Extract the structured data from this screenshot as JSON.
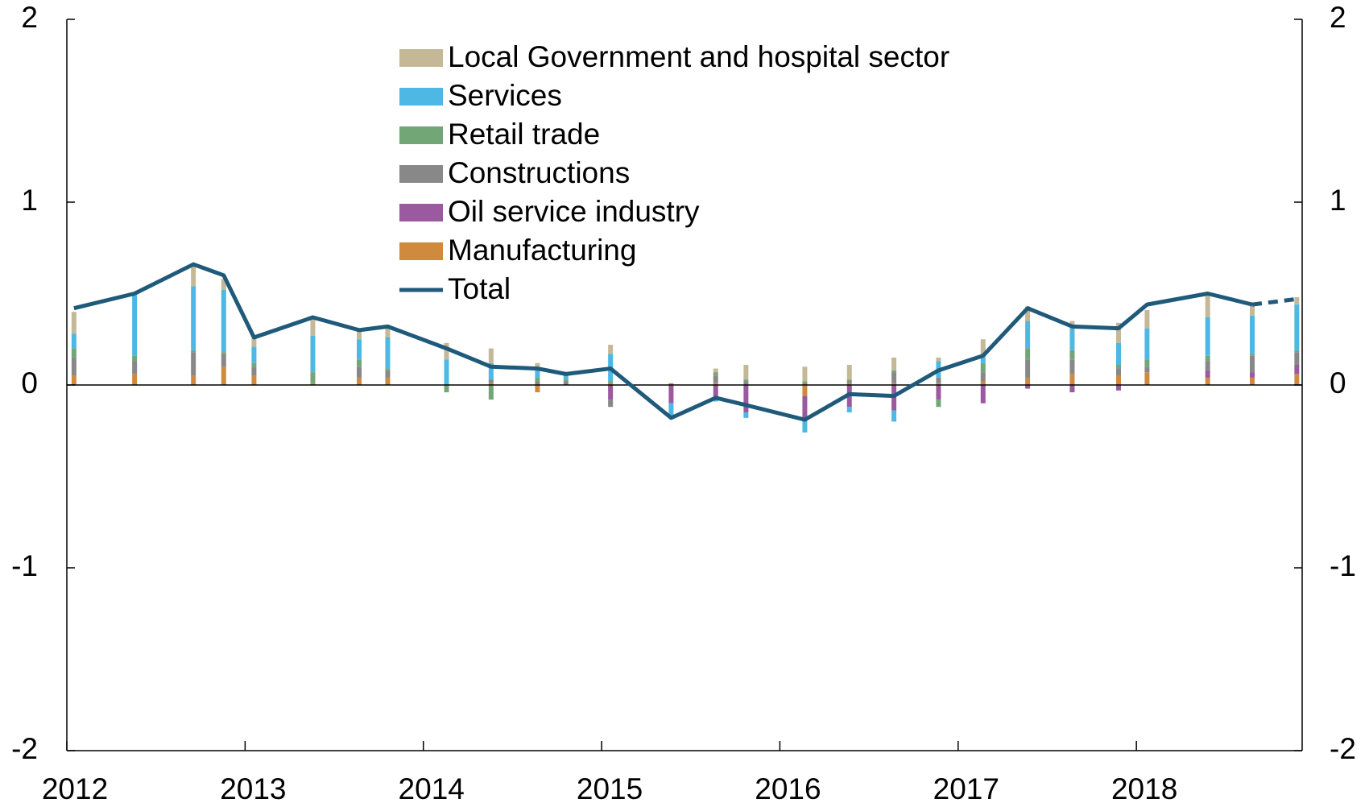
{
  "chart_data": {
    "type": "bar",
    "x": [
      2012.04,
      2012.38,
      2012.71,
      2012.88,
      2013.05,
      2013.38,
      2013.64,
      2013.8,
      2014.13,
      2014.38,
      2014.64,
      2014.8,
      2015.05,
      2015.39,
      2015.64,
      2015.81,
      2016.14,
      2016.39,
      2016.64,
      2016.89,
      2017.14,
      2017.39,
      2017.64,
      2017.9,
      2018.06,
      2018.4,
      2018.65,
      2018.9
    ],
    "series": [
      {
        "name": "Local Government and hospital sector",
        "type": "bar",
        "color": "#c4b897",
        "values": [
          0.12,
          0.01,
          0.12,
          0.06,
          0.05,
          0.09,
          0.05,
          0.06,
          0.09,
          0.08,
          0.04,
          0.01,
          0.05,
          0,
          0.02,
          0.08,
          0.08,
          0.08,
          0.07,
          0.02,
          0.1,
          0.08,
          0.04,
          0.11,
          0.1,
          0.12,
          0.06,
          0.04
        ]
      },
      {
        "name": "Services",
        "type": "bar",
        "color": "#4db8e4",
        "values": [
          0.08,
          0.33,
          0.35,
          0.34,
          0.09,
          0.2,
          0.11,
          0.17,
          0.14,
          0.09,
          0.04,
          0.03,
          0.15,
          -0.08,
          -0.02,
          -0.03,
          -0.08,
          -0.03,
          -0.06,
          0.09,
          0.03,
          0.15,
          0.12,
          0.12,
          0.17,
          0.21,
          0.21,
          0.25
        ]
      },
      {
        "name": "Retail trade",
        "type": "bar",
        "color": "#73a677",
        "values": [
          0.05,
          0.03,
          0.01,
          0.01,
          0.02,
          0.06,
          0.04,
          0.01,
          -0.04,
          -0.08,
          0.02,
          0.01,
          0.01,
          0,
          0.02,
          0.01,
          0.01,
          0.01,
          0.01,
          -0.04,
          0.05,
          0.06,
          0.05,
          0.02,
          0.04,
          0.03,
          0.01,
          0.01
        ]
      },
      {
        "name": "Constructions",
        "type": "bar",
        "color": "#888888",
        "values": [
          0.1,
          0.07,
          0.13,
          0.07,
          0.05,
          0,
          0.06,
          0.04,
          0,
          0.02,
          0.02,
          0.02,
          -0.04,
          0,
          0.04,
          0.02,
          0.01,
          0.01,
          0.06,
          0.03,
          0.05,
          0.1,
          0.08,
          0.04,
          0.03,
          0.05,
          0.09,
          0.07
        ]
      },
      {
        "name": "Oil service industry",
        "type": "bar",
        "color": "#9b59a0",
        "values": [
          0,
          0,
          0,
          0,
          0,
          0,
          0,
          0,
          0,
          0,
          0,
          0,
          -0.08,
          -0.1,
          -0.07,
          -0.15,
          -0.12,
          -0.12,
          -0.14,
          -0.08,
          -0.1,
          -0.02,
          -0.04,
          -0.03,
          0,
          0.04,
          0.03,
          0.05
        ]
      },
      {
        "name": "Manufacturing",
        "type": "bar",
        "color": "#d08a3e",
        "values": [
          0.05,
          0.06,
          0.05,
          0.1,
          0.05,
          0.01,
          0.04,
          0.04,
          0,
          0.01,
          -0.04,
          0,
          0.01,
          0.01,
          0.01,
          0,
          -0.06,
          0.01,
          0.01,
          0.01,
          0.02,
          0.04,
          0.06,
          0.05,
          0.07,
          0.04,
          0.04,
          0.06
        ]
      },
      {
        "name": "Total",
        "type": "line",
        "color": "#1f5a7a",
        "dashed_from": 26,
        "values": [
          0.42,
          0.5,
          0.66,
          0.6,
          0.26,
          0.37,
          0.3,
          0.32,
          0.2,
          0.1,
          0.09,
          0.06,
          0.09,
          -0.18,
          -0.07,
          -0.11,
          -0.19,
          -0.05,
          -0.06,
          0.08,
          0.16,
          0.42,
          0.32,
          0.31,
          0.44,
          0.5,
          0.44,
          0.47
        ]
      }
    ],
    "xlim": [
      2012,
      2018.93
    ],
    "xticks": [
      2012,
      2013,
      2014,
      2015,
      2016,
      2017,
      2018
    ],
    "ylim": [
      -2,
      2
    ],
    "yticks": [
      -2,
      -1,
      0,
      1,
      2
    ],
    "y2lim": [
      -2,
      2
    ],
    "y2ticks": [
      -2,
      -1,
      0,
      1,
      2
    ]
  }
}
